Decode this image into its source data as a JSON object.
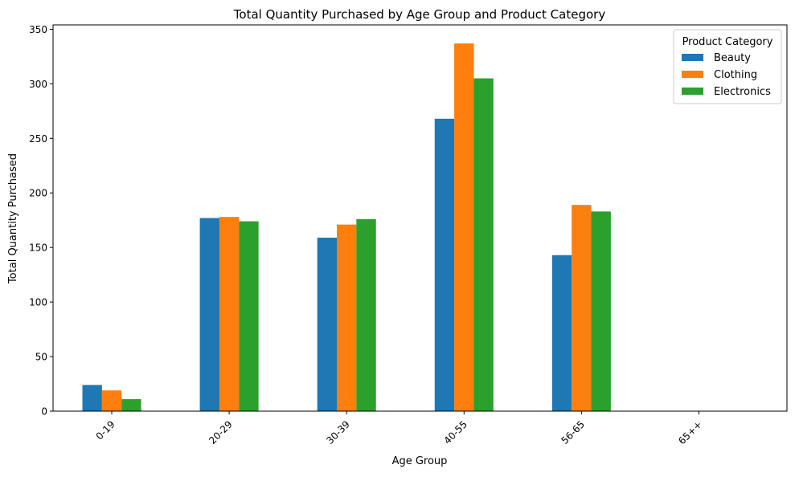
{
  "chart_data": {
    "type": "bar",
    "title": "Total Quantity Purchased by Age Group and Product Category",
    "xlabel": "Age Group",
    "ylabel": "Total Quantity Purchased",
    "categories": [
      "0-19",
      "20-29",
      "30-39",
      "40-55",
      "56-65",
      "65++"
    ],
    "series": [
      {
        "name": "Beauty",
        "color": "#1f77b4",
        "values": [
          24,
          177,
          159,
          268,
          143,
          0
        ]
      },
      {
        "name": "Clothing",
        "color": "#ff7f0e",
        "values": [
          19,
          178,
          171,
          337,
          189,
          0
        ]
      },
      {
        "name": "Electronics",
        "color": "#2ca02c",
        "values": [
          11,
          174,
          176,
          305,
          183,
          0
        ]
      }
    ],
    "ylim": [
      0,
      354
    ],
    "yticks": [
      0,
      50,
      100,
      150,
      200,
      250,
      300,
      350
    ],
    "legend": {
      "title": "Product Category",
      "placement": "top-right"
    },
    "grid": false,
    "xtick_rotation": 45
  }
}
